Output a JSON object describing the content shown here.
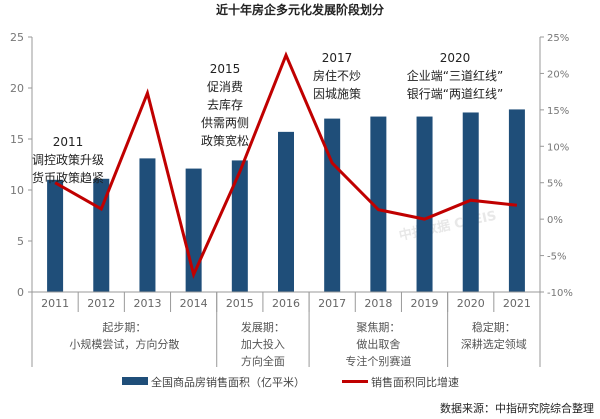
{
  "chart_data": {
    "type": "bar+line",
    "title": "近十年房企多元化发展阶段划分",
    "categories": [
      "2011",
      "2012",
      "2013",
      "2014",
      "2015",
      "2016",
      "2017",
      "2018",
      "2019",
      "2020",
      "2021"
    ],
    "series": [
      {
        "name": "全国商品房销售面积（亿平米）",
        "type": "bar",
        "axis": "left",
        "color": "#1f4e79",
        "values": [
          11.0,
          11.1,
          13.1,
          12.1,
          12.9,
          15.7,
          17.0,
          17.2,
          17.2,
          17.6,
          17.9
        ]
      },
      {
        "name": "销售面积同比增速",
        "type": "line",
        "axis": "right",
        "color": "#c00000",
        "values": [
          5.0,
          1.4,
          17.3,
          -7.6,
          6.5,
          22.5,
          7.7,
          1.3,
          0.0,
          2.6,
          1.9
        ]
      }
    ],
    "ylim": [
      0,
      25
    ],
    "yticks": [
      "0",
      "5",
      "10",
      "15",
      "20",
      "25"
    ],
    "y2lim": [
      -10,
      25
    ],
    "y2ticks": [
      "-10%",
      "-5%",
      "0%",
      "5%",
      "10%",
      "15%",
      "20%",
      "25%"
    ],
    "legend_position": "bottom",
    "annotations": [
      {
        "lines": [
          "2011",
          "调控政策升级",
          "货币政策趋紧"
        ]
      },
      {
        "lines": [
          "2015",
          "促消费",
          "去库存",
          "供需两侧",
          "政策宽松"
        ]
      },
      {
        "lines": [
          "2017",
          "房住不炒",
          "因城施策"
        ]
      },
      {
        "lines": [
          "2020",
          "企业端“三道红线”",
          "银行端“两道红线”"
        ]
      }
    ],
    "stages": [
      {
        "lines": [
          "起步期：",
          "小规模尝试，方向分散"
        ]
      },
      {
        "lines": [
          "发展期：",
          "加大投入",
          "方向全面"
        ]
      },
      {
        "lines": [
          "聚焦期：",
          "做出取舍",
          "专注个别赛道"
        ]
      },
      {
        "lines": [
          "稳定期：",
          "深耕选定领域"
        ]
      }
    ],
    "watermark": "中指数据 CREIS",
    "source": "数据来源：中指研究院综合整理"
  }
}
